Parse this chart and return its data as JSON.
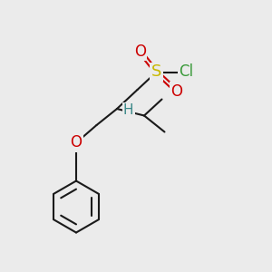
{
  "bg_color": "#ebebeb",
  "bond_color": "#1a1a1a",
  "bond_width": 1.5,
  "atom_S_color": "#c8b800",
  "atom_O_color": "#cc0000",
  "atom_Cl_color": "#3a9a3a",
  "atom_H_color": "#3a8888",
  "font_size_large": 12,
  "font_size_med": 11,
  "fig_bg": "#ebebeb",
  "xlim": [
    0,
    10
  ],
  "ylim": [
    0,
    10
  ]
}
